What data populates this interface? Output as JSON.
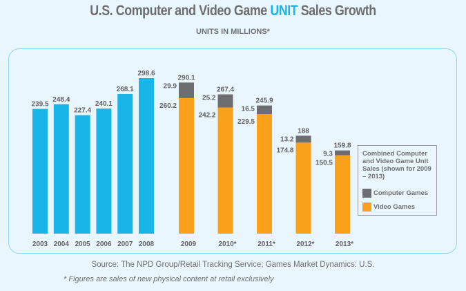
{
  "title_parts": {
    "pre": "U.S. Computer and Video Game ",
    "highlight": "UNIT",
    "post": " Sales Growth"
  },
  "subtitle": "UNITS IN MILLIONS*",
  "chart_data": {
    "type": "bar",
    "title": "U.S. Computer and Video Game UNIT Sales Growth",
    "subtitle": "UNITS IN MILLIONS*",
    "ylim": [
      0,
      300
    ],
    "grid": false,
    "colors": {
      "combined": "#19b5e8",
      "computer": "#6d6e71",
      "video": "#f9a11b"
    },
    "combined": {
      "categories": [
        "2003",
        "2004",
        "2005",
        "2006",
        "2007",
        "2008"
      ],
      "values": [
        239.5,
        248.4,
        227.4,
        240.1,
        268.1,
        298.6
      ]
    },
    "stacked": {
      "categories": [
        "2009",
        "2010*",
        "2011*",
        "2012*",
        "2013*"
      ],
      "series": [
        {
          "name": "Video Games",
          "values": [
            260.2,
            242.2,
            229.5,
            174.8,
            150.5
          ]
        },
        {
          "name": "Computer Games",
          "values": [
            29.9,
            25.2,
            16.5,
            13.2,
            9.3
          ]
        }
      ],
      "totals": [
        "290.1",
        "267.4",
        "245.9",
        "188",
        "159.8"
      ]
    },
    "legend": {
      "title": "Combined Computer and Video Game Unit Sales (shown for 2009 – 2013)",
      "items": [
        "Computer Games",
        "Video Games"
      ],
      "placement": "right"
    }
  },
  "source": "Source: The NPD Group/Retail Tracking Service; Games Market Dynamics: U.S.",
  "footnote": "*  Figures are sales of new physical content at retail exclusively"
}
